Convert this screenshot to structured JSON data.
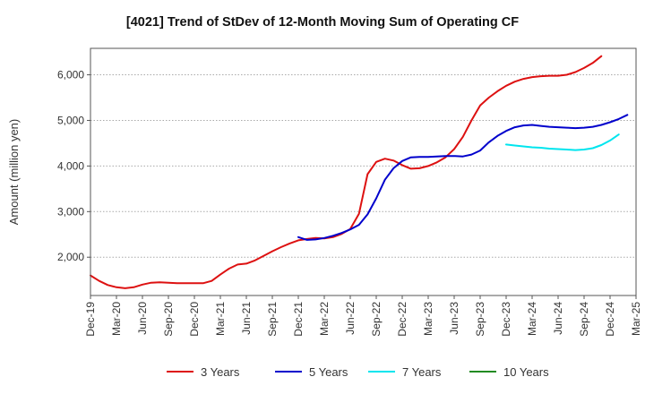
{
  "chart_data": {
    "type": "line",
    "title": "[4021]  Trend of StDev of 12-Month Moving Sum of Operating CF",
    "xlabel": "",
    "ylabel": "Amount (million yen)",
    "x_ticks": [
      "Dec-19",
      "Mar-20",
      "Jun-20",
      "Sep-20",
      "Dec-20",
      "Mar-21",
      "Jun-21",
      "Sep-21",
      "Dec-21",
      "Mar-22",
      "Jun-22",
      "Sep-22",
      "Dec-22",
      "Mar-23",
      "Jun-23",
      "Sep-23",
      "Dec-23",
      "Mar-24",
      "Jun-24",
      "Sep-24",
      "Dec-24",
      "Mar-25"
    ],
    "y_ticks": [
      2000,
      3000,
      4000,
      5000,
      6000
    ],
    "y_tick_labels": [
      "2,000",
      "3,000",
      "4,000",
      "5,000",
      "6,000"
    ],
    "ylim": [
      1160,
      6580
    ],
    "grid": "horizontal dotted",
    "legend_position": "bottom",
    "series": [
      {
        "name": "3 Years",
        "color": "#dd1111",
        "start_index": 0,
        "values": [
          1600,
          1480,
          1390,
          1340,
          1320,
          1340,
          1400,
          1440,
          1450,
          1440,
          1430,
          1430,
          1430,
          1430,
          1480,
          1620,
          1750,
          1840,
          1860,
          1930,
          2030,
          2130,
          2220,
          2300,
          2370,
          2400,
          2420,
          2410,
          2440,
          2510,
          2620,
          2950,
          3820,
          4090,
          4160,
          4120,
          4020,
          3940,
          3950,
          4000,
          4080,
          4190,
          4370,
          4640,
          5000,
          5330,
          5500,
          5640,
          5760,
          5850,
          5910,
          5950,
          5970,
          5980,
          5980,
          6000,
          6060,
          6150,
          6260,
          6410
        ]
      },
      {
        "name": "5 Years",
        "color": "#0000cc",
        "start_index": 24,
        "values": [
          2440,
          2380,
          2390,
          2420,
          2470,
          2530,
          2610,
          2710,
          2940,
          3290,
          3700,
          3950,
          4110,
          4190,
          4200,
          4200,
          4210,
          4220,
          4220,
          4210,
          4250,
          4340,
          4520,
          4660,
          4770,
          4850,
          4890,
          4900,
          4880,
          4860,
          4850,
          4840,
          4830,
          4840,
          4860,
          4900,
          4960,
          5030,
          5120
        ]
      },
      {
        "name": "7 Years",
        "color": "#00e5ee",
        "start_index": 48,
        "values": [
          4470,
          4450,
          4430,
          4410,
          4400,
          4380,
          4370,
          4360,
          4350,
          4360,
          4390,
          4460,
          4560,
          4690
        ]
      },
      {
        "name": "10 Years",
        "color": "#228b22",
        "start_index": 0,
        "values": []
      }
    ]
  }
}
